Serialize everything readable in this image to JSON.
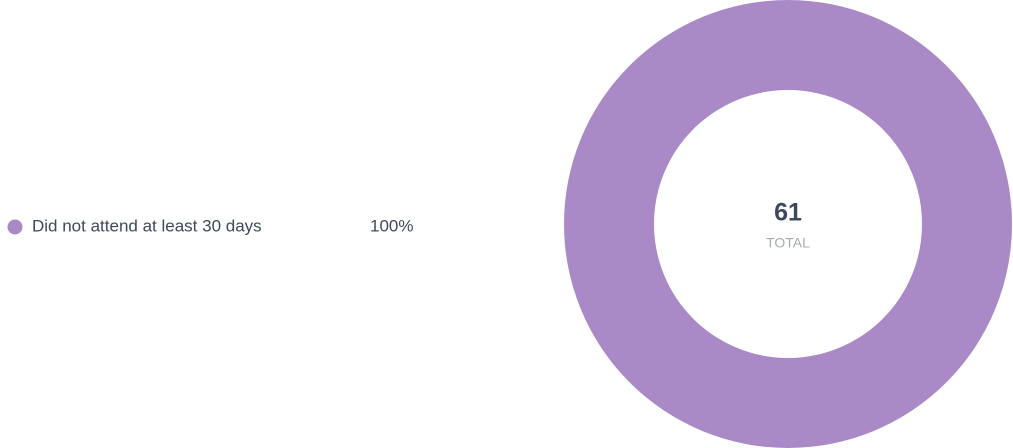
{
  "chart_data": {
    "type": "pie",
    "donut": true,
    "categories": [
      "Did not attend at least 30 days"
    ],
    "values": [
      100
    ],
    "value_labels": [
      "100%"
    ],
    "colors": [
      "#a98ac6"
    ],
    "total": 61,
    "total_label": "TOTAL",
    "legend": "left"
  }
}
